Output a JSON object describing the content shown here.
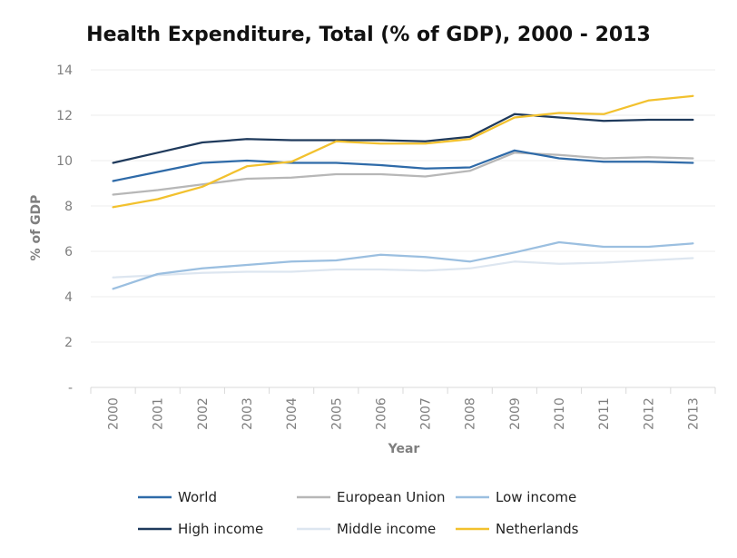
{
  "chart_data": {
    "type": "line",
    "title": "Health Expenditure, Total (% of GDP), 2000 - 2013",
    "xlabel": "Year",
    "ylabel": "% of GDP",
    "x": [
      "2000",
      "2001",
      "2002",
      "2003",
      "2004",
      "2005",
      "2006",
      "2007",
      "2008",
      "2009",
      "2010",
      "2011",
      "2012",
      "2013"
    ],
    "ylim": [
      0,
      14
    ],
    "yticks": [
      "-",
      "2",
      "4",
      "6",
      "8",
      "10",
      "12",
      "14"
    ],
    "grid": true,
    "legend_position": "bottom",
    "series": [
      {
        "name": "World",
        "color": "#2e6aa8",
        "values": [
          9.1,
          9.5,
          9.9,
          10.0,
          9.9,
          9.9,
          9.8,
          9.65,
          9.7,
          10.45,
          10.1,
          9.95,
          9.95,
          9.9
        ]
      },
      {
        "name": "European Union",
        "color": "#b7b7b7",
        "values": [
          8.5,
          8.7,
          8.95,
          9.2,
          9.25,
          9.4,
          9.4,
          9.3,
          9.55,
          10.35,
          10.25,
          10.1,
          10.15,
          10.1
        ]
      },
      {
        "name": "Low income",
        "color": "#9bbfe0",
        "values": [
          4.35,
          5.0,
          5.25,
          5.4,
          5.55,
          5.6,
          5.85,
          5.75,
          5.55,
          5.95,
          6.4,
          6.2,
          6.2,
          6.35
        ]
      },
      {
        "name": "High income",
        "color": "#1f3a5c",
        "values": [
          9.9,
          10.35,
          10.8,
          10.95,
          10.9,
          10.9,
          10.9,
          10.85,
          11.05,
          12.05,
          11.9,
          11.75,
          11.8,
          11.8
        ]
      },
      {
        "name": "Middle income",
        "color": "#dde6f0",
        "values": [
          4.85,
          4.95,
          5.05,
          5.1,
          5.1,
          5.2,
          5.2,
          5.15,
          5.25,
          5.55,
          5.45,
          5.5,
          5.6,
          5.7
        ]
      },
      {
        "name": "Netherlands",
        "color": "#f2c12e",
        "values": [
          7.95,
          8.3,
          8.85,
          9.75,
          9.95,
          10.85,
          10.75,
          10.75,
          10.95,
          11.9,
          12.1,
          12.05,
          12.65,
          12.85
        ]
      }
    ]
  }
}
